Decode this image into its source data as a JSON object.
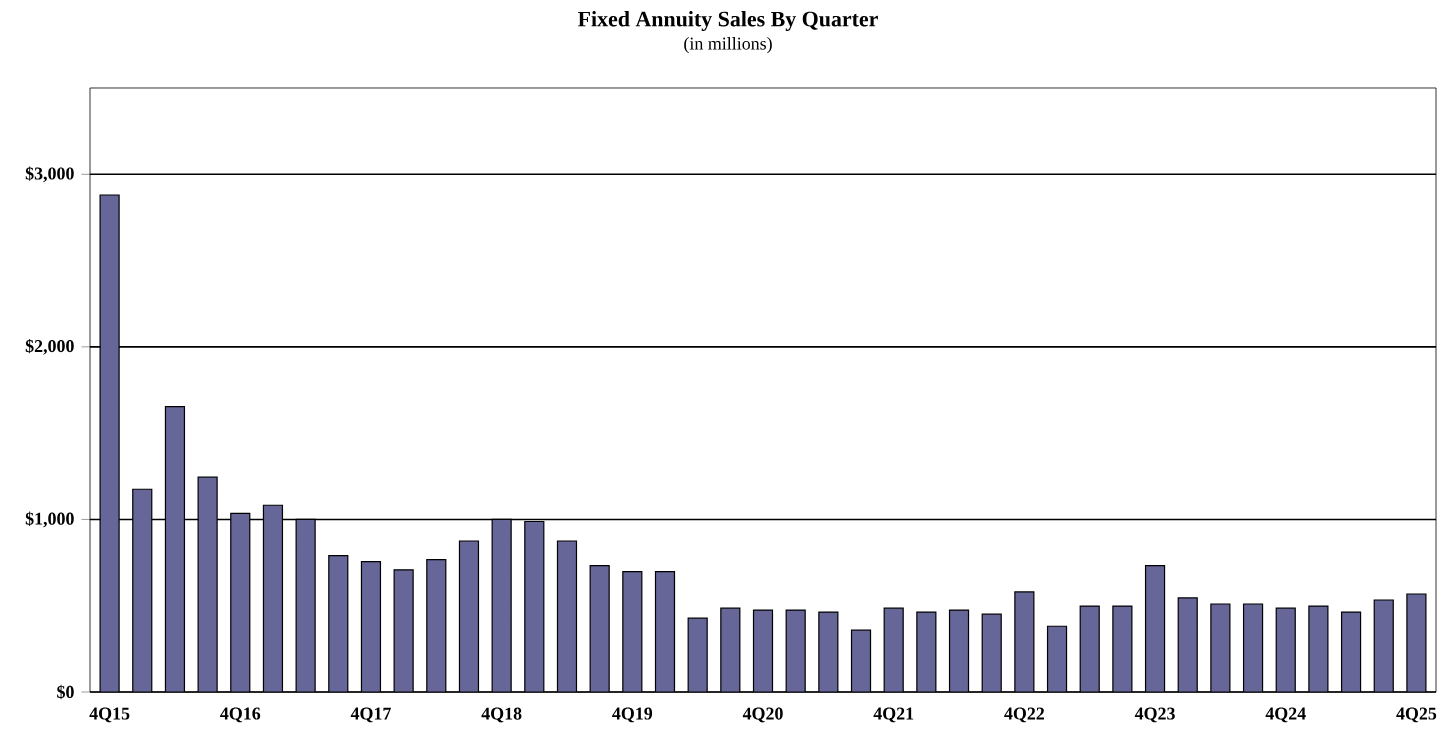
{
  "chart_data": {
    "type": "bar",
    "title": "Fixed Annuity Sales By Quarter",
    "subtitle": "(in millions)",
    "categories": [
      "4Q15",
      null,
      null,
      null,
      "4Q16",
      null,
      null,
      null,
      "4Q17",
      null,
      null,
      null,
      "4Q18",
      null,
      null,
      null,
      "4Q19",
      null,
      null,
      null,
      "4Q20",
      null,
      null,
      null,
      "4Q21",
      null,
      null,
      null,
      "4Q22",
      null,
      null,
      null,
      "4Q23",
      null,
      null,
      null,
      "4Q24",
      null,
      null,
      null,
      "4Q25"
    ],
    "values": [
      2880,
      1175,
      1654,
      1245,
      1035,
      1082,
      1000,
      790,
      755,
      708,
      767,
      875,
      1000,
      988,
      875,
      732,
      697,
      697,
      428,
      486,
      475,
      475,
      463,
      358,
      486,
      463,
      475,
      451,
      580,
      381,
      498,
      498,
      732,
      545,
      510,
      510,
      486,
      498,
      463,
      533,
      568
    ],
    "color": "#666699",
    "ylim": [
      0,
      3500
    ],
    "yticks": [
      {
        "value": 0,
        "label": "$0"
      },
      {
        "value": 1000,
        "label": "$1,000"
      },
      {
        "value": 2000,
        "label": "$2,000"
      },
      {
        "value": 3000,
        "label": "$3,000"
      }
    ],
    "grid": "y"
  }
}
